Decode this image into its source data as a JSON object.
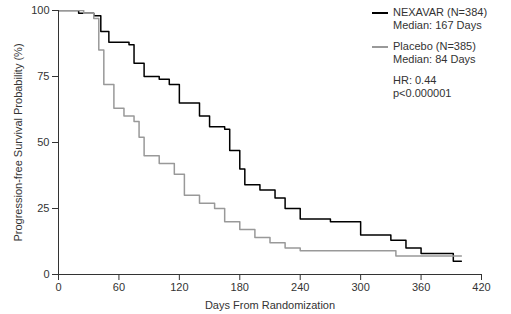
{
  "chart_data": {
    "type": "line",
    "x_label": "Days From Randomization",
    "y_label": "Progression-free Survival Probability (%)",
    "xlim": [
      0,
      420
    ],
    "xticks": [
      0,
      60,
      120,
      180,
      240,
      300,
      360,
      420
    ],
    "ylim": [
      0,
      100
    ],
    "yticks": [
      0,
      25,
      50,
      75,
      100
    ],
    "line_style": "step",
    "legend": "upper right",
    "annotations": [
      "HR: 0.44",
      "p<0.000001"
    ],
    "series": [
      {
        "name": "NEXAVAR (N=384)",
        "annotation": "Median: 167 Days",
        "color": "#000000",
        "x": [
          0,
          20,
          35,
          42,
          50,
          70,
          75,
          85,
          100,
          110,
          120,
          140,
          150,
          165,
          170,
          180,
          185,
          200,
          215,
          225,
          240,
          270,
          300,
          330,
          345,
          360,
          392,
          400
        ],
        "values": [
          100,
          99,
          98,
          92,
          88,
          87,
          80,
          75,
          74,
          72,
          65,
          60,
          56,
          55,
          47,
          40,
          34,
          32,
          29,
          25,
          21,
          20,
          15,
          13,
          10,
          8,
          5,
          5
        ]
      },
      {
        "name": "Placebo (N=385)",
        "annotation": "Median: 84 Days",
        "color": "#999999",
        "x": [
          0,
          25,
          35,
          40,
          45,
          55,
          65,
          75,
          80,
          85,
          100,
          115,
          125,
          140,
          155,
          165,
          180,
          195,
          210,
          225,
          240,
          335,
          400
        ],
        "values": [
          100,
          99,
          97,
          85,
          72,
          63,
          60,
          58,
          52,
          45,
          42,
          38,
          30,
          27,
          25,
          20,
          17,
          14,
          12,
          10,
          9,
          7,
          7
        ]
      }
    ]
  }
}
